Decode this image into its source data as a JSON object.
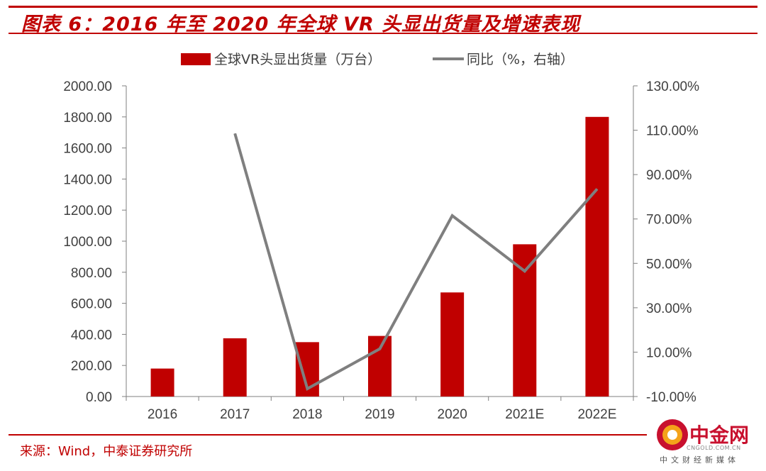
{
  "header": {
    "title": "图表 6：2016 年至 2020 年全球 VR 头显出货量及增速表现"
  },
  "footer": {
    "source": "来源：Wind，中泰证券研究所"
  },
  "watermark": {
    "name": "中金网",
    "url": "CNGOLD.COM.CN",
    "tagline": "中文财经新媒体"
  },
  "colors": {
    "accent": "#c00000",
    "bar": "#c00000",
    "line": "#7f7f7f",
    "axis": "#7f7f7f",
    "text": "#404040"
  },
  "chart_data": {
    "type": "bar",
    "categories": [
      "2016",
      "2017",
      "2018",
      "2019",
      "2020",
      "2021E",
      "2022E"
    ],
    "series": [
      {
        "name": "全球VR头显出货量（万台）",
        "type": "bar",
        "axis": "left",
        "values": [
          180,
          375,
          350,
          390,
          670,
          980,
          1800
        ]
      },
      {
        "name": "同比（%，右轴）",
        "type": "line",
        "axis": "right",
        "values": [
          null,
          108.5,
          -6.5,
          11.5,
          71.5,
          46.5,
          83.5
        ]
      }
    ],
    "y_left": {
      "min": 0,
      "max": 2000,
      "step": 200,
      "ticks": [
        "0.00",
        "200.00",
        "400.00",
        "600.00",
        "800.00",
        "1000.00",
        "1200.00",
        "1400.00",
        "1600.00",
        "1800.00",
        "2000.00"
      ]
    },
    "y_right": {
      "min": -10,
      "max": 130,
      "step": 20,
      "ticks": [
        "-10.00%",
        "10.00%",
        "30.00%",
        "50.00%",
        "70.00%",
        "90.00%",
        "110.00%",
        "130.00%"
      ]
    },
    "legend_position": "top",
    "grid": false
  }
}
